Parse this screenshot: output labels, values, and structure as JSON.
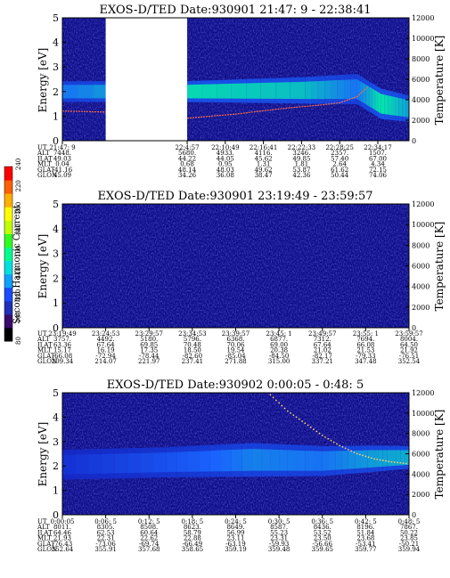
{
  "chart_data": [
    {
      "type": "heatmap",
      "title": "EXOS-D/TED   Date:930901  21:47: 9 - 22:38:41",
      "ylabel": "Energy [eV]",
      "y2label": "Temperature [K]",
      "ylim": [
        0,
        5
      ],
      "y2lim": [
        0,
        12000
      ],
      "yticks": [
        "0",
        "1",
        "2",
        "3",
        "4",
        "5"
      ],
      "y2ticks": [
        "0",
        "2000",
        "4000",
        "6000",
        "8000",
        "10000",
        "12000"
      ],
      "data_gap": [
        0.125,
        0.36
      ],
      "orbit_columns": [
        [
          "21:47: 9",
          "7448.",
          "49.03",
          "0.04",
          "-41.16",
          "45.09"
        ],
        [
          "22:4:57",
          "5680.",
          "44.22",
          "0.68",
          "48.14",
          "34.26"
        ],
        [
          "22:10:49",
          "4933.",
          "44.05",
          "0.95",
          "48.03",
          "36.08"
        ],
        [
          "22:16:41",
          "4116.",
          "45.62",
          "1.31",
          "49.62",
          "38.47"
        ],
        [
          "22:22:33",
          "3246.",
          "49.85",
          "1.81",
          "53.87",
          "42.36"
        ],
        [
          "22:28:25",
          "2357.",
          "57.40",
          "2.64",
          "61.62",
          "50.44"
        ],
        [
          "22:34:17",
          "1507.",
          "67.00",
          "4.34",
          "72.15",
          "74.06"
        ]
      ],
      "orbit_col_frac": [
        0,
        0.36,
        0.47,
        0.58,
        0.69,
        0.8,
        0.91
      ],
      "temperature_trace": {
        "x": [
          0.0,
          0.125,
          0.36,
          0.5,
          0.65,
          0.75,
          0.8,
          0.85,
          0.88
        ],
        "y": [
          2900,
          2800,
          2200,
          2600,
          3200,
          3500,
          3700,
          4300,
          5200
        ]
      },
      "intensity_band": [
        {
          "x": 0.0,
          "center": 2.0,
          "width": 0.55,
          "level": 0.55
        },
        {
          "x": 0.36,
          "center": 2.0,
          "width": 0.55,
          "level": 0.9
        },
        {
          "x": 0.7,
          "center": 2.05,
          "width": 0.7,
          "level": 0.8
        },
        {
          "x": 0.85,
          "center": 2.1,
          "width": 0.8,
          "level": 0.55
        },
        {
          "x": 0.92,
          "center": 1.5,
          "width": 0.8,
          "level": 0.95
        },
        {
          "x": 1.0,
          "center": 1.3,
          "width": 0.7,
          "level": 0.7
        }
      ]
    },
    {
      "type": "heatmap",
      "title": "EXOS-D/TED   Date:930901  23:19:49 - 23:59:57",
      "ylabel": "Energy [eV]",
      "y2label": "Temperature [K]",
      "ylim": [
        0,
        5
      ],
      "y2lim": [
        0,
        12000
      ],
      "yticks": [
        "0",
        "1",
        "2",
        "3",
        "4",
        "5"
      ],
      "y2ticks": [
        "0",
        "2000",
        "4000",
        "6000",
        "8000",
        "10000",
        "12000"
      ],
      "orbit_columns": [
        [
          "23:19:49",
          "3757.",
          "63.36",
          "15.17",
          "-66.08",
          "209.34"
        ],
        [
          "23:24:53",
          "4492.",
          "67.64",
          "16.19",
          "-72.94",
          "214.07"
        ],
        [
          "23:29:57",
          "5180.",
          "69.85",
          "17.35",
          "-78.44",
          "221.97"
        ],
        [
          "23:34:53",
          "5796.",
          "70.48",
          "18.50",
          "-82.60",
          "237.41"
        ],
        [
          "23:39:57",
          "6368.",
          "70.06",
          "19.54",
          "-85.04",
          "271.88"
        ],
        [
          "23:45: 1",
          "6877.",
          "69.00",
          "20.38",
          "-84.50",
          "315.00"
        ],
        [
          "23:49:57",
          "7312.",
          "67.64",
          "21.02",
          "-82.17",
          "337.21"
        ],
        [
          "23:55: 1",
          "7694.",
          "66.08",
          "21.53",
          "-79.33",
          "347.48"
        ],
        [
          "23:59:57",
          "8004.",
          "64.50",
          "21.92",
          "-76.51",
          "352.54"
        ]
      ],
      "orbit_col_frac": [
        0,
        0.125,
        0.25,
        0.375,
        0.5,
        0.625,
        0.75,
        0.875,
        1.0
      ],
      "intensity_band": []
    },
    {
      "type": "heatmap",
      "title": "EXOS-D/TED   Date:930902  0:00:05 - 0:48: 5",
      "ylabel": "Energy [eV]",
      "y2label": "Temperature [K]",
      "ylim": [
        0,
        5
      ],
      "y2lim": [
        0,
        12000
      ],
      "yticks": [
        "0",
        "1",
        "2",
        "3",
        "4",
        "5"
      ],
      "y2ticks": [
        "0",
        "2000",
        "4000",
        "6000",
        "8000",
        "10000",
        "12000"
      ],
      "orbit_columns": [
        [
          "0:00:05",
          "8011.",
          "64.46",
          "21.93",
          "-76.43",
          "352.64"
        ],
        [
          "0:06: 5",
          "8305.",
          "62.53",
          "22.31",
          "-73.06",
          "355.91"
        ],
        [
          "0:12: 5",
          "8508.",
          "60.64",
          "22.62",
          "-69.74",
          "357.68"
        ],
        [
          "0:18: 5",
          "8623.",
          "58.79",
          "22.88",
          "-66.49",
          "358.65"
        ],
        [
          "0:24: 5",
          "8649.",
          "56.99",
          "23.11",
          "-63.19",
          "359.19"
        ],
        [
          "0:30: 5",
          "8587.",
          "55.23",
          "23.31",
          "-59.93",
          "359.48"
        ],
        [
          "0:36: 5",
          "8436.",
          "53.52",
          "23.50",
          "-56.66",
          "359.65"
        ],
        [
          "0:42: 5",
          "8196.",
          "51.84",
          "23.68",
          "-53.41",
          "359.77"
        ],
        [
          "0:48: 5",
          "7867.",
          "50.22",
          "23.85",
          "-50.21",
          "359.94"
        ]
      ],
      "orbit_col_frac": [
        0,
        0.125,
        0.25,
        0.375,
        0.5,
        0.625,
        0.75,
        0.875,
        1.0
      ],
      "scatter_trace": {
        "x": [
          0.6,
          0.65,
          0.7,
          0.75,
          0.8,
          0.85,
          0.9,
          0.95,
          1.0
        ],
        "y": [
          11800,
          10200,
          9000,
          7800,
          6800,
          6000,
          5500,
          5200,
          5000
        ]
      },
      "intensity_band": [
        {
          "x": 0.0,
          "center": 2.05,
          "width": 0.8,
          "level": 0.1
        },
        {
          "x": 0.3,
          "center": 2.15,
          "width": 0.8,
          "level": 0.35
        },
        {
          "x": 0.55,
          "center": 2.25,
          "width": 0.9,
          "level": 0.6
        },
        {
          "x": 0.75,
          "center": 2.2,
          "width": 0.8,
          "level": 0.55
        },
        {
          "x": 0.9,
          "center": 2.3,
          "width": 0.7,
          "level": 0.7
        },
        {
          "x": 1.0,
          "center": 2.35,
          "width": 0.6,
          "level": 0.75
        }
      ]
    }
  ],
  "orbit_row_labels": [
    "UT",
    "ALT",
    "ILAT",
    "MLT",
    "GLAT",
    "GLON"
  ],
  "colorbar": {
    "label": "Second Harmonic Current",
    "ticks": [
      "80",
      "100",
      "120",
      "140",
      "160",
      "180",
      "200",
      "220",
      "240"
    ],
    "colors": [
      "#000000",
      "#3a0a6e",
      "#2030b8",
      "#1a4cff",
      "#10a0ff",
      "#00e0e0",
      "#00ff90",
      "#30ff20",
      "#c0ff00",
      "#ffff00",
      "#ffb000",
      "#ff6000",
      "#ff0000"
    ]
  },
  "colors": {
    "background": "#0d0d86",
    "band_low": "#1a33ff",
    "band_high": "#00ff99",
    "trace": "#ff6b4a"
  }
}
